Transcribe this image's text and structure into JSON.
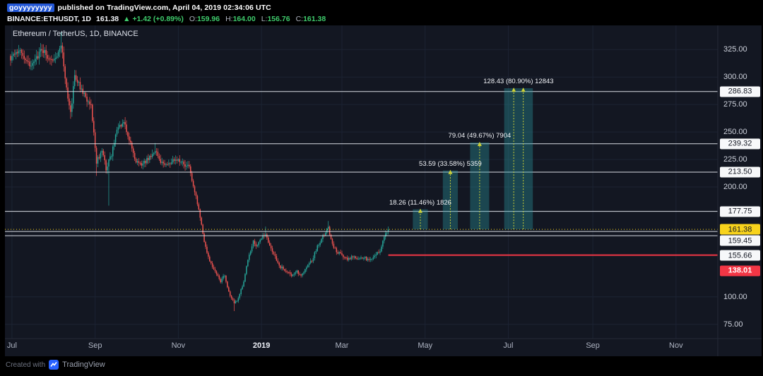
{
  "header": {
    "username": "goyyyyyyyy",
    "published_text": "published on TradingView.com, April 04, 2019 02:34:06 UTC",
    "symbol": "BINANCE:ETHUSDT, 1D",
    "last_price": "161.38",
    "change": "▲ +1.42 (+0.89%)",
    "ohlc": [
      {
        "k": "O:",
        "v": "159.96"
      },
      {
        "k": "H:",
        "v": "164.00"
      },
      {
        "k": "L:",
        "v": "156.76"
      },
      {
        "k": "C:",
        "v": "161.38"
      }
    ]
  },
  "legend": "Ethereum / TetherUS, 1D, BINANCE",
  "footer": {
    "created_with": "Created with",
    "brand": "TradingView"
  },
  "colors": {
    "chart_bg": "#131722",
    "up": "#26a69a",
    "down": "#ef5350",
    "accent_yellow": "#f8d31c",
    "level_white": "#eef1f8",
    "red_line": "#f23645",
    "projection_fill": "rgba(42,157,167,0.35)",
    "projection_line": "#cfd235",
    "grid": "#1c2333",
    "axis_border": "#252a37"
  },
  "chart_data": {
    "type": "candlestick",
    "title": "Ethereum / TetherUS, 1D, BINANCE",
    "symbol": "ETHUSDT",
    "exchange": "BINANCE",
    "interval": "1D",
    "last_price": 161.38,
    "y_axis": {
      "min": 62,
      "max": 347,
      "plain_ticks": [
        325,
        300,
        275,
        250,
        225,
        200,
        100,
        75
      ]
    },
    "x_axis": {
      "labels": [
        {
          "text": "Jul",
          "day": 1
        },
        {
          "text": "Sep",
          "day": 62
        },
        {
          "text": "Nov",
          "day": 123
        },
        {
          "text": "2019",
          "day": 184,
          "emphasis": true
        },
        {
          "text": "Mar",
          "day": 243
        },
        {
          "text": "May",
          "day": 304
        },
        {
          "text": "Jul",
          "day": 365
        },
        {
          "text": "Sep",
          "day": 427
        },
        {
          "text": "Nov",
          "day": 488
        }
      ]
    },
    "levels": [
      {
        "price": 286.83,
        "label": "286.83",
        "type": "white-line"
      },
      {
        "price": 239.32,
        "label": "239.32",
        "type": "white-line"
      },
      {
        "price": 213.5,
        "label": "213.50",
        "type": "white-line"
      },
      {
        "price": 177.75,
        "label": "177.75",
        "type": "white-line"
      },
      {
        "price": 161.38,
        "label": "161.38",
        "type": "current-price"
      },
      {
        "price": 159.45,
        "label": "159.45",
        "type": "white-line",
        "label_dy": 13
      },
      {
        "price": 155.66,
        "label": "155.66",
        "type": "white-line",
        "label_dy": 28
      },
      {
        "price": 138.01,
        "label": "138.01",
        "type": "red-ray",
        "from_day": 277,
        "label_dy": 22
      }
    ],
    "projections": [
      {
        "label": "18.26 (11.46%) 1826",
        "base": 161.38,
        "target": 179.64,
        "day_from": 295,
        "day_to": 306
      },
      {
        "label": "53.59 (33.58%) 5359",
        "base": 161.38,
        "target": 214.97,
        "day_from": 317,
        "day_to": 328
      },
      {
        "label": "79.04 (49.67%) 7904",
        "base": 161.38,
        "target": 240.42,
        "day_from": 337,
        "day_to": 351
      },
      {
        "label": "128.43 (80.90%) 12843",
        "base": 161.38,
        "target": 289.81,
        "day_from": 362,
        "day_to": 383,
        "double_line": true
      }
    ],
    "last_candle": {
      "o": 159.96,
      "h": 164.0,
      "l": 156.76,
      "c": 161.38
    },
    "days": 278,
    "price_path_anchors": [
      [
        0,
        317
      ],
      [
        8,
        323
      ],
      [
        15,
        310
      ],
      [
        23,
        326
      ],
      [
        31,
        313
      ],
      [
        37,
        331
      ],
      [
        41,
        288
      ],
      [
        44,
        268
      ],
      [
        47,
        300
      ],
      [
        51,
        291
      ],
      [
        55,
        281
      ],
      [
        59,
        275
      ],
      [
        63,
        223
      ],
      [
        67,
        233
      ],
      [
        70,
        217
      ],
      [
        74,
        230
      ],
      [
        78,
        252
      ],
      [
        83,
        258
      ],
      [
        89,
        236
      ],
      [
        92,
        223
      ],
      [
        97,
        220
      ],
      [
        102,
        228
      ],
      [
        106,
        232
      ],
      [
        110,
        224
      ],
      [
        114,
        220
      ],
      [
        118,
        222
      ],
      [
        122,
        226
      ],
      [
        126,
        222
      ],
      [
        131,
        217
      ],
      [
        135,
        196
      ],
      [
        139,
        172
      ],
      [
        142,
        149
      ],
      [
        146,
        133
      ],
      [
        150,
        123
      ],
      [
        154,
        114
      ],
      [
        157,
        120
      ],
      [
        160,
        104
      ],
      [
        164,
        95
      ],
      [
        167,
        98
      ],
      [
        171,
        114
      ],
      [
        174,
        134
      ],
      [
        178,
        150
      ],
      [
        181,
        146
      ],
      [
        184,
        153
      ],
      [
        187,
        158
      ],
      [
        191,
        143
      ],
      [
        194,
        136
      ],
      [
        198,
        127
      ],
      [
        202,
        124
      ],
      [
        206,
        120
      ],
      [
        210,
        123
      ],
      [
        213,
        120
      ],
      [
        217,
        127
      ],
      [
        221,
        133
      ],
      [
        225,
        146
      ],
      [
        229,
        155
      ],
      [
        233,
        163
      ],
      [
        236,
        148
      ],
      [
        239,
        141
      ],
      [
        243,
        138
      ],
      [
        247,
        134
      ],
      [
        251,
        137
      ],
      [
        255,
        134
      ],
      [
        259,
        136
      ],
      [
        263,
        133
      ],
      [
        267,
        138
      ],
      [
        271,
        142
      ],
      [
        274,
        156
      ],
      [
        277,
        161.38
      ]
    ],
    "spikes": [
      {
        "day": 37,
        "high": 341
      },
      {
        "day": 44,
        "low": 262
      },
      {
        "day": 63,
        "low": 210
      },
      {
        "day": 72,
        "low": 183
      },
      {
        "day": 106,
        "high": 240
      },
      {
        "day": 164,
        "low": 87
      },
      {
        "day": 187,
        "high": 164
      },
      {
        "day": 233,
        "high": 169
      }
    ]
  }
}
